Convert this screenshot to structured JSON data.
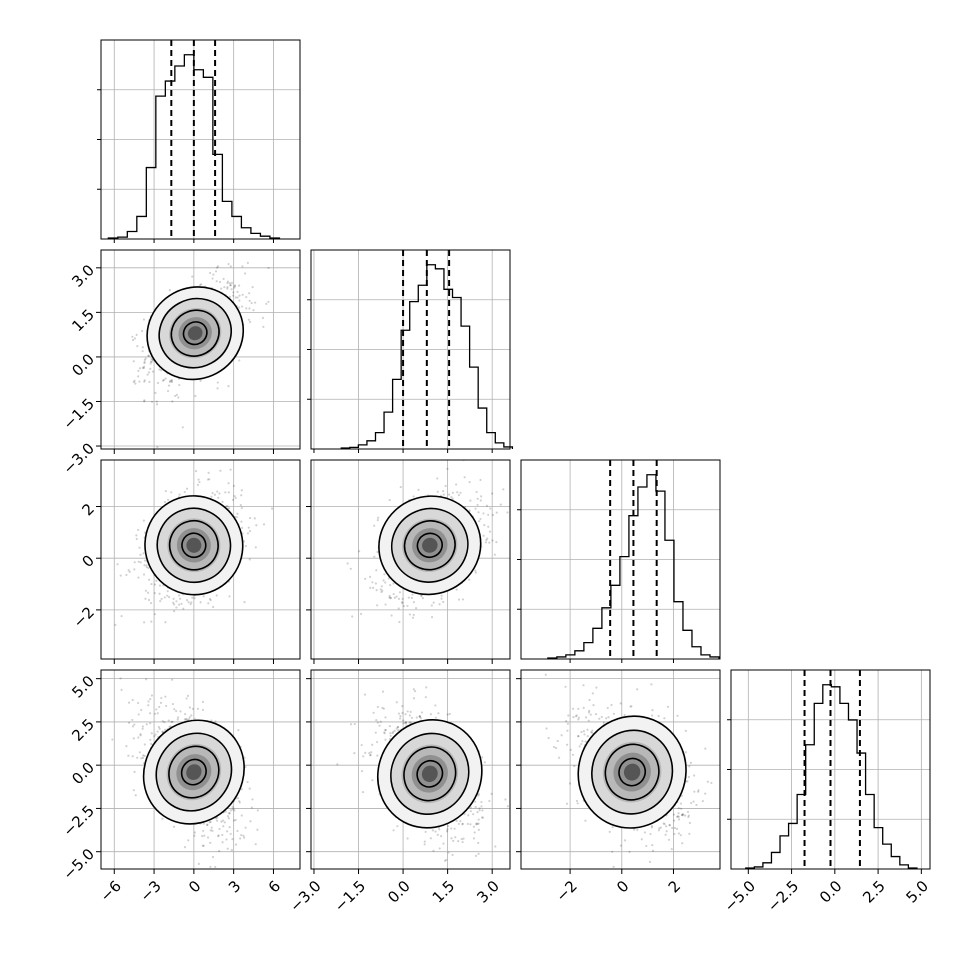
{
  "chart_data": {
    "type": "corner",
    "grid": true,
    "quantile_lines": "dashed",
    "dims": [
      {
        "range": [
          -7,
          8
        ],
        "ticks": [
          -6,
          -3,
          0,
          3,
          6
        ],
        "tick_labels": [
          "−6",
          "−3",
          "0",
          "3",
          "6"
        ],
        "mean": 0.0,
        "std": 1.6,
        "quantiles": [
          -1.7,
          0.0,
          1.6
        ],
        "hist_counts": [
          0.5,
          1.0,
          4,
          12,
          38,
          76,
          84,
          92,
          98,
          90,
          86,
          45,
          20,
          12,
          6,
          3,
          1.5,
          0.5
        ]
      },
      {
        "range": [
          -3.1,
          3.6
        ],
        "ticks": [
          -3.0,
          -1.5,
          0.0,
          1.5,
          3.0
        ],
        "tick_labels": [
          "−3.0",
          "−1.5",
          "0.0",
          "1.5",
          "3.0"
        ],
        "mean": 0.8,
        "std": 0.75,
        "quantiles": [
          0.0,
          0.8,
          1.55
        ],
        "hist_counts": [
          0.5,
          0.8,
          2,
          4,
          8,
          18,
          34,
          58,
          72,
          80,
          90,
          88,
          78,
          74,
          60,
          40,
          20,
          8,
          3,
          1
        ]
      },
      {
        "range": [
          -3.9,
          3.8
        ],
        "ticks": [
          -2,
          0,
          2
        ],
        "tick_labels": [
          "−2",
          "0",
          "2"
        ],
        "mean": 0.45,
        "std": 0.9,
        "quantiles": [
          -0.45,
          0.45,
          1.35
        ],
        "hist_counts": [
          0.5,
          1,
          2,
          4,
          8,
          15,
          25,
          36,
          50,
          70,
          84,
          90,
          82,
          58,
          28,
          14,
          6,
          2,
          1
        ]
      },
      {
        "range": [
          -6.0,
          5.5
        ],
        "ticks": [
          -5.0,
          -2.5,
          0.0,
          2.5,
          5.0
        ],
        "tick_labels": [
          "−5.0",
          "−2.5",
          "0.0",
          "2.5",
          "5.0"
        ],
        "mean": -0.2,
        "std": 1.55,
        "quantiles": [
          -1.75,
          -0.25,
          1.45
        ],
        "hist_counts": [
          0.5,
          1,
          3,
          8,
          16,
          22,
          36,
          60,
          80,
          89,
          88,
          80,
          72,
          56,
          36,
          20,
          12,
          6,
          2,
          0.5
        ]
      }
    ],
    "pairs": [
      {
        "row": 1,
        "col": 0,
        "center": [
          0.1,
          0.8
        ],
        "sx": 1.6,
        "sy": 0.75,
        "corr": 0.45
      },
      {
        "row": 2,
        "col": 0,
        "center": [
          0.0,
          0.5
        ],
        "sx": 1.6,
        "sy": 0.9,
        "corr": 0.3
      },
      {
        "row": 2,
        "col": 1,
        "center": [
          0.9,
          0.5
        ],
        "sx": 0.75,
        "sy": 0.9,
        "corr": 0.35
      },
      {
        "row": 3,
        "col": 0,
        "center": [
          0.0,
          -0.4
        ],
        "sx": 1.6,
        "sy": 1.55,
        "corr": -0.55
      },
      {
        "row": 3,
        "col": 1,
        "center": [
          0.9,
          -0.5
        ],
        "sx": 0.75,
        "sy": 1.55,
        "corr": -0.45
      },
      {
        "row": 3,
        "col": 2,
        "center": [
          0.4,
          -0.4
        ],
        "sx": 0.9,
        "sy": 1.55,
        "corr": -0.35
      }
    ],
    "contour_levels": [
      0.5,
      1.0,
      1.5,
      2.0
    ]
  }
}
